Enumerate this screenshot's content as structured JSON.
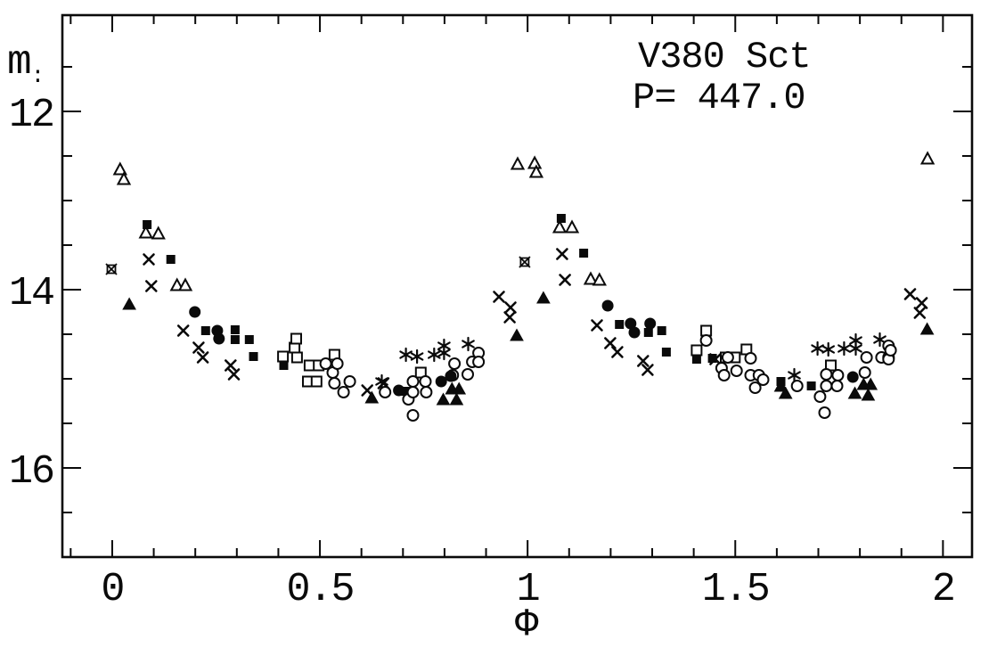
{
  "figure": {
    "title": "V380 Sct",
    "period_annotation": "P= 447.0",
    "y_axis_label_main": "m",
    "y_axis_label_sub": ":",
    "x_axis_label": "Φ"
  },
  "chart_data": {
    "type": "scatter",
    "title": "V380 Sct",
    "annotation": "P= 447.0",
    "xlabel": "Φ",
    "ylabel": "m",
    "xlim": [
      -0.12,
      2.07
    ],
    "ylim_bottom": 17.0,
    "ylim_top": 10.92,
    "y_axis_inverted": true,
    "grid": false,
    "legend": "none",
    "x_major_ticks": [
      0,
      0.5,
      1,
      1.5,
      2
    ],
    "x_major_labels": [
      "0",
      "0.5",
      "1",
      "1.5",
      "2"
    ],
    "x_minor_step": 0.1,
    "y_major_ticks": [
      12,
      14,
      16
    ],
    "y_major_labels": [
      "12",
      "14",
      "16"
    ],
    "y_minor_step": 0.5,
    "marker_color": "#0a0a0a",
    "series": [
      {
        "name": "open-triangle",
        "marker": "open-triangle",
        "points": [
          [
            0.019,
            12.65
          ],
          [
            0.028,
            12.76
          ],
          [
            0.081,
            13.36
          ],
          [
            0.111,
            13.37
          ],
          [
            0.156,
            13.95
          ],
          [
            0.176,
            13.95
          ],
          [
            0.976,
            12.59
          ],
          [
            1.017,
            12.58
          ],
          [
            1.021,
            12.68
          ],
          [
            1.077,
            13.3
          ],
          [
            1.107,
            13.3
          ],
          [
            1.152,
            13.88
          ],
          [
            1.173,
            13.89
          ],
          [
            1.963,
            12.53
          ]
        ]
      },
      {
        "name": "filled-triangle",
        "marker": "filled-triangle",
        "points": [
          [
            0.041,
            14.16
          ],
          [
            0.625,
            15.21
          ],
          [
            0.797,
            15.23
          ],
          [
            0.818,
            15.11
          ],
          [
            0.829,
            15.23
          ],
          [
            0.835,
            15.11
          ],
          [
            0.974,
            14.51
          ],
          [
            1.038,
            14.09
          ],
          [
            1.61,
            15.08
          ],
          [
            1.621,
            15.16
          ],
          [
            1.788,
            15.16
          ],
          [
            1.809,
            15.06
          ],
          [
            1.82,
            15.18
          ],
          [
            1.826,
            15.06
          ],
          [
            1.962,
            14.44
          ]
        ]
      },
      {
        "name": "filled-square",
        "marker": "filled-square",
        "points": [
          [
            0.084,
            13.27
          ],
          [
            0.141,
            13.66
          ],
          [
            0.225,
            14.46
          ],
          [
            0.296,
            14.45
          ],
          [
            0.296,
            14.56
          ],
          [
            0.33,
            14.56
          ],
          [
            0.34,
            14.75
          ],
          [
            0.413,
            14.85
          ],
          [
            0.705,
            15.14
          ],
          [
            1.081,
            13.2
          ],
          [
            1.135,
            13.59
          ],
          [
            1.221,
            14.39
          ],
          [
            1.291,
            14.48
          ],
          [
            1.323,
            14.46
          ],
          [
            1.334,
            14.7
          ],
          [
            1.407,
            14.78
          ],
          [
            1.445,
            14.77
          ],
          [
            1.61,
            15.03
          ],
          [
            1.683,
            15.08
          ]
        ]
      },
      {
        "name": "open-square",
        "marker": "open-square",
        "points": [
          [
            0.411,
            14.75
          ],
          [
            0.439,
            14.65
          ],
          [
            0.443,
            14.55
          ],
          [
            0.445,
            14.76
          ],
          [
            0.471,
            15.03
          ],
          [
            0.475,
            14.85
          ],
          [
            0.492,
            15.03
          ],
          [
            0.497,
            14.85
          ],
          [
            0.535,
            14.73
          ],
          [
            0.743,
            14.93
          ],
          [
            1.407,
            14.68
          ],
          [
            1.43,
            14.46
          ],
          [
            1.477,
            14.76
          ],
          [
            1.499,
            14.76
          ],
          [
            1.527,
            14.67
          ],
          [
            1.73,
            14.85
          ]
        ]
      },
      {
        "name": "cross",
        "marker": "cross",
        "points": [
          [
            0.088,
            13.66
          ],
          [
            0.094,
            13.96
          ],
          [
            0.171,
            14.46
          ],
          [
            0.208,
            14.65
          ],
          [
            0.218,
            14.76
          ],
          [
            0.285,
            14.85
          ],
          [
            0.293,
            14.95
          ],
          [
            0.614,
            15.13
          ],
          [
            0.653,
            15.05
          ],
          [
            0.931,
            14.08
          ],
          [
            0.957,
            14.31
          ],
          [
            0.959,
            14.2
          ],
          [
            1.083,
            13.6
          ],
          [
            1.09,
            13.89
          ],
          [
            1.167,
            14.4
          ],
          [
            1.199,
            14.6
          ],
          [
            1.216,
            14.7
          ],
          [
            1.278,
            14.8
          ],
          [
            1.289,
            14.9
          ],
          [
            1.452,
            14.78
          ],
          [
            1.921,
            14.05
          ],
          [
            1.944,
            14.26
          ],
          [
            1.949,
            14.15
          ]
        ]
      },
      {
        "name": "square-cross",
        "marker": "square-cross",
        "points": [
          [
            -0.002,
            13.77
          ],
          [
            0.993,
            13.69
          ]
        ]
      },
      {
        "name": "asterisk",
        "marker": "asterisk",
        "points": [
          [
            0.649,
            15.03
          ],
          [
            0.707,
            14.73
          ],
          [
            0.734,
            14.75
          ],
          [
            0.775,
            14.73
          ],
          [
            0.799,
            14.63
          ],
          [
            0.799,
            14.71
          ],
          [
            0.857,
            14.61
          ],
          [
            1.642,
            14.96
          ],
          [
            1.698,
            14.66
          ],
          [
            1.724,
            14.67
          ],
          [
            1.762,
            14.66
          ],
          [
            1.79,
            14.57
          ],
          [
            1.79,
            14.66
          ],
          [
            1.848,
            14.56
          ]
        ]
      },
      {
        "name": "open-circle",
        "marker": "open-circle",
        "points": [
          [
            0.514,
            14.83
          ],
          [
            0.531,
            14.93
          ],
          [
            0.535,
            15.05
          ],
          [
            0.542,
            14.83
          ],
          [
            0.557,
            15.15
          ],
          [
            0.572,
            15.03
          ],
          [
            0.657,
            15.15
          ],
          [
            0.713,
            15.23
          ],
          [
            0.724,
            15.03
          ],
          [
            0.724,
            15.15
          ],
          [
            0.724,
            15.41
          ],
          [
            0.754,
            15.03
          ],
          [
            0.756,
            15.15
          ],
          [
            0.82,
            14.96
          ],
          [
            0.824,
            14.83
          ],
          [
            0.856,
            14.95
          ],
          [
            0.867,
            14.81
          ],
          [
            0.882,
            14.71
          ],
          [
            0.882,
            14.81
          ],
          [
            1.43,
            14.57
          ],
          [
            1.467,
            14.88
          ],
          [
            1.473,
            14.96
          ],
          [
            1.482,
            14.76
          ],
          [
            1.503,
            14.91
          ],
          [
            1.537,
            14.77
          ],
          [
            1.537,
            14.96
          ],
          [
            1.548,
            15.1
          ],
          [
            1.557,
            14.96
          ],
          [
            1.567,
            15.01
          ],
          [
            1.649,
            15.08
          ],
          [
            1.704,
            15.2
          ],
          [
            1.715,
            15.38
          ],
          [
            1.719,
            14.95
          ],
          [
            1.719,
            15.08
          ],
          [
            1.745,
            15.08
          ],
          [
            1.747,
            14.96
          ],
          [
            1.812,
            14.93
          ],
          [
            1.816,
            14.76
          ],
          [
            1.852,
            14.76
          ],
          [
            1.869,
            14.63
          ],
          [
            1.869,
            14.76
          ],
          [
            1.869,
            14.78
          ],
          [
            1.874,
            14.68
          ]
        ]
      },
      {
        "name": "filled-circle",
        "marker": "filled-circle",
        "points": [
          [
            0.199,
            14.25
          ],
          [
            0.253,
            14.46
          ],
          [
            0.257,
            14.55
          ],
          [
            0.69,
            15.13
          ],
          [
            0.792,
            15.03
          ],
          [
            0.815,
            14.97
          ],
          [
            1.193,
            14.18
          ],
          [
            1.248,
            14.38
          ],
          [
            1.257,
            14.48
          ],
          [
            1.295,
            14.38
          ],
          [
            1.783,
            14.98
          ]
        ]
      }
    ]
  }
}
